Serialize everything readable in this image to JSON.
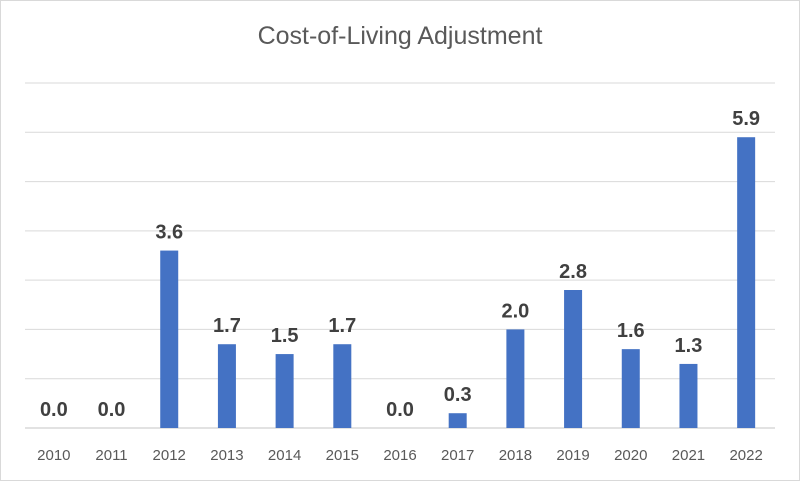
{
  "chart_data": {
    "type": "bar",
    "title": "Cost-of-Living Adjustment",
    "categories": [
      "2010",
      "2011",
      "2012",
      "2013",
      "2014",
      "2015",
      "2016",
      "2017",
      "2018",
      "2019",
      "2020",
      "2021",
      "2022"
    ],
    "values": [
      0.0,
      0.0,
      3.6,
      1.7,
      1.5,
      1.7,
      0.0,
      0.3,
      2.0,
      2.8,
      1.6,
      1.3,
      5.9
    ],
    "data_labels": [
      "0.0",
      "0.0",
      "3.6",
      "1.7",
      "1.5",
      "1.7",
      "0.0",
      "0.3",
      "2.0",
      "2.8",
      "1.6",
      "1.3",
      "5.9"
    ],
    "xlabel": "",
    "ylabel": "",
    "ylim": [
      0,
      7
    ],
    "y_axis_labels_shown": false,
    "grid": true,
    "legend": "none",
    "colors": {
      "bar": "#4472c4",
      "grid": "#d9d9d9",
      "label": "#404040",
      "axis_text": "#595959"
    }
  }
}
